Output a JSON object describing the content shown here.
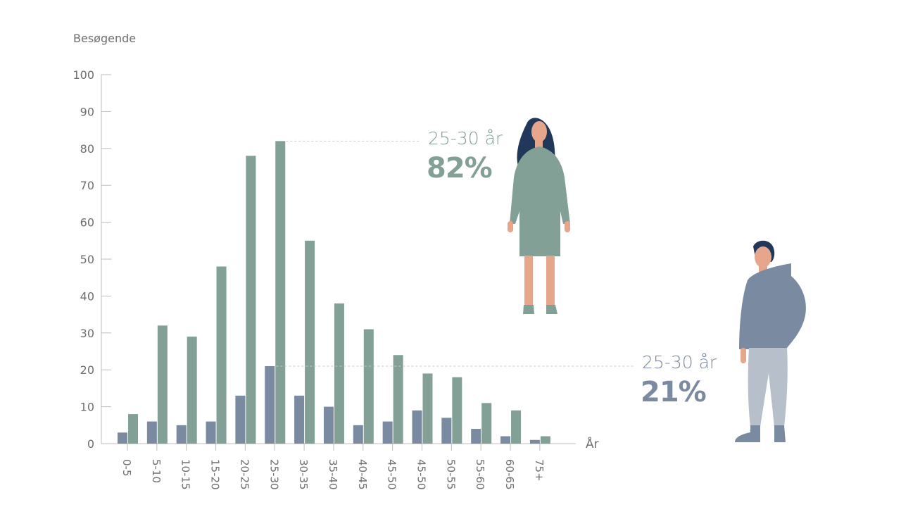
{
  "chart_data": {
    "type": "bar",
    "ylabel": "Besøgende",
    "xlabel": "År",
    "ylim": [
      0,
      100
    ],
    "yticks": [
      0,
      10,
      20,
      30,
      40,
      50,
      60,
      70,
      80,
      90,
      100
    ],
    "categories": [
      "0-5",
      "5-10",
      "10-15",
      "15-20",
      "20-25",
      "25-30",
      "30-35",
      "35-40",
      "40-45",
      "45-50",
      "45-50",
      "50-55",
      "55-60",
      "60-65",
      "75+"
    ],
    "series": [
      {
        "values": [
          3,
          6,
          5,
          6,
          13,
          21,
          13,
          10,
          5,
          6,
          9,
          7,
          4,
          2,
          1
        ],
        "color": "#7a8aa1"
      },
      {
        "values": [
          8,
          32,
          29,
          48,
          78,
          82,
          55,
          38,
          31,
          24,
          19,
          18,
          11,
          9,
          2
        ],
        "color": "#82a095"
      }
    ],
    "grid": false
  },
  "callouts": {
    "female": {
      "range": "25-30 år",
      "percent": "82%",
      "color": "#82a095",
      "value": 82
    },
    "male": {
      "range": "25-30 år",
      "percent": "21%",
      "color": "#7a8aa1",
      "value": 21
    }
  },
  "colors": {
    "female_dress": "#82a095",
    "male_hoodie": "#7a8aa1",
    "male_pants": "#b6bfca",
    "hair": "#22385a",
    "skin": "#e5a68c",
    "axis": "#bdbdbd",
    "text": "#6f6f6f"
  },
  "icons": [
    "woman-figure-icon",
    "man-figure-icon"
  ]
}
